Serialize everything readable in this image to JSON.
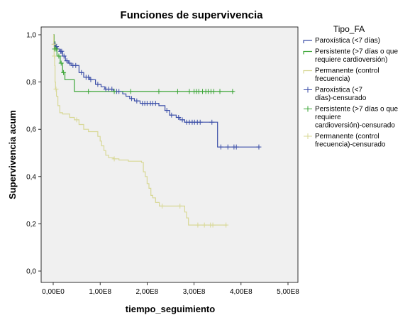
{
  "chart_data": {
    "type": "line",
    "title": "Funciones de supervivencia",
    "xlabel": "tiempo_seguimiento",
    "ylabel": "Supervivencia acum",
    "xlim": [
      0,
      500000000
    ],
    "ylim": [
      0,
      1.0
    ],
    "x_ticks": [
      {
        "value": 0,
        "label": "0,00E0"
      },
      {
        "value": 100000000,
        "label": "1,00E8"
      },
      {
        "value": 200000000,
        "label": "2,00E8"
      },
      {
        "value": 300000000,
        "label": "3,00E8"
      },
      {
        "value": 400000000,
        "label": "4,00E8"
      },
      {
        "value": 500000000,
        "label": "5,00E8"
      }
    ],
    "y_ticks": [
      {
        "value": 0,
        "label": "0,0"
      },
      {
        "value": 0.2,
        "label": "0,2"
      },
      {
        "value": 0.4,
        "label": "0,4"
      },
      {
        "value": 0.6,
        "label": "0,6"
      },
      {
        "value": 0.8,
        "label": "0,8"
      },
      {
        "value": 1.0,
        "label": "1,0"
      }
    ],
    "grid": false,
    "legend_position": "right",
    "legend_title": "Tipo_FA",
    "legend": [
      {
        "label": "Paroxística (<7 días)",
        "kind": "line",
        "series": 0
      },
      {
        "label": "Persistente (>7 días o que requiere cardioversión)",
        "kind": "line",
        "series": 1
      },
      {
        "label": "Permanente (control frecuencia)",
        "kind": "line",
        "series": 2
      },
      {
        "label": "Paroxística (<7 días)-censurado",
        "kind": "censor",
        "series": 0
      },
      {
        "label": "Persistente (>7 días o que requiere cardioversión)-censurado",
        "kind": "censor",
        "series": 1
      },
      {
        "label": "Permanente (control frecuencia)-censurado",
        "kind": "censor",
        "series": 2
      }
    ],
    "series": [
      {
        "color": "#3b4ea8",
        "steps": [
          [
            0,
            1.0
          ],
          [
            1500000,
            0.96
          ],
          [
            5000000,
            0.95
          ],
          [
            9000000,
            0.94
          ],
          [
            13000000,
            0.93
          ],
          [
            20000000,
            0.91
          ],
          [
            26000000,
            0.89
          ],
          [
            32000000,
            0.88
          ],
          [
            38000000,
            0.87
          ],
          [
            55000000,
            0.84
          ],
          [
            65000000,
            0.82
          ],
          [
            78000000,
            0.81
          ],
          [
            90000000,
            0.79
          ],
          [
            102000000,
            0.78
          ],
          [
            110000000,
            0.77
          ],
          [
            128000000,
            0.76
          ],
          [
            148000000,
            0.75
          ],
          [
            155000000,
            0.74
          ],
          [
            163000000,
            0.73
          ],
          [
            173000000,
            0.72
          ],
          [
            185000000,
            0.71
          ],
          [
            225000000,
            0.7
          ],
          [
            238000000,
            0.68
          ],
          [
            248000000,
            0.66
          ],
          [
            262000000,
            0.65
          ],
          [
            270000000,
            0.64
          ],
          [
            280000000,
            0.63
          ],
          [
            350000000,
            0.63
          ],
          [
            350000000,
            0.525
          ],
          [
            440000000,
            0.525
          ]
        ],
        "censored": [
          [
            3000000,
            0.96
          ],
          [
            7000000,
            0.95
          ],
          [
            16000000,
            0.93
          ],
          [
            18000000,
            0.93
          ],
          [
            23000000,
            0.91
          ],
          [
            29000000,
            0.89
          ],
          [
            35000000,
            0.88
          ],
          [
            42000000,
            0.87
          ],
          [
            48000000,
            0.87
          ],
          [
            60000000,
            0.84
          ],
          [
            70000000,
            0.82
          ],
          [
            75000000,
            0.82
          ],
          [
            80000000,
            0.81
          ],
          [
            95000000,
            0.79
          ],
          [
            112000000,
            0.77
          ],
          [
            118000000,
            0.77
          ],
          [
            125000000,
            0.77
          ],
          [
            135000000,
            0.76
          ],
          [
            140000000,
            0.76
          ],
          [
            167000000,
            0.73
          ],
          [
            178000000,
            0.72
          ],
          [
            190000000,
            0.71
          ],
          [
            195000000,
            0.71
          ],
          [
            200000000,
            0.71
          ],
          [
            207000000,
            0.71
          ],
          [
            212000000,
            0.71
          ],
          [
            218000000,
            0.71
          ],
          [
            242000000,
            0.68
          ],
          [
            252000000,
            0.66
          ],
          [
            267000000,
            0.65
          ],
          [
            275000000,
            0.64
          ],
          [
            284000000,
            0.63
          ],
          [
            290000000,
            0.63
          ],
          [
            296000000,
            0.63
          ],
          [
            301000000,
            0.63
          ],
          [
            307000000,
            0.63
          ],
          [
            313000000,
            0.63
          ],
          [
            338000000,
            0.63
          ],
          [
            357000000,
            0.525
          ],
          [
            372000000,
            0.525
          ],
          [
            385000000,
            0.525
          ],
          [
            390000000,
            0.525
          ],
          [
            438000000,
            0.525
          ]
        ]
      },
      {
        "color": "#3aa535",
        "steps": [
          [
            0,
            1.0
          ],
          [
            2000000,
            0.97
          ],
          [
            4000000,
            0.94
          ],
          [
            8000000,
            0.91
          ],
          [
            15000000,
            0.88
          ],
          [
            20000000,
            0.84
          ],
          [
            25000000,
            0.81
          ],
          [
            45000000,
            0.76
          ],
          [
            385000000,
            0.76
          ]
        ],
        "censored": [
          [
            3000000,
            0.94
          ],
          [
            6000000,
            0.94
          ],
          [
            12000000,
            0.91
          ],
          [
            17000000,
            0.88
          ],
          [
            22000000,
            0.84
          ],
          [
            75000000,
            0.76
          ],
          [
            130000000,
            0.76
          ],
          [
            165000000,
            0.76
          ],
          [
            225000000,
            0.76
          ],
          [
            265000000,
            0.76
          ],
          [
            290000000,
            0.76
          ],
          [
            300000000,
            0.76
          ],
          [
            305000000,
            0.76
          ],
          [
            310000000,
            0.76
          ],
          [
            318000000,
            0.76
          ],
          [
            325000000,
            0.76
          ],
          [
            330000000,
            0.76
          ],
          [
            336000000,
            0.76
          ],
          [
            342000000,
            0.76
          ],
          [
            355000000,
            0.76
          ],
          [
            382000000,
            0.76
          ]
        ]
      },
      {
        "color": "#d8d896",
        "steps": [
          [
            0,
            1.0
          ],
          [
            1000000,
            0.96
          ],
          [
            2000000,
            0.91
          ],
          [
            3000000,
            0.87
          ],
          [
            4000000,
            0.8
          ],
          [
            5000000,
            0.77
          ],
          [
            7000000,
            0.74
          ],
          [
            10000000,
            0.7
          ],
          [
            14000000,
            0.67
          ],
          [
            20000000,
            0.665
          ],
          [
            35000000,
            0.65
          ],
          [
            45000000,
            0.64
          ],
          [
            55000000,
            0.62
          ],
          [
            65000000,
            0.6
          ],
          [
            75000000,
            0.59
          ],
          [
            95000000,
            0.57
          ],
          [
            100000000,
            0.55
          ],
          [
            103000000,
            0.53
          ],
          [
            108000000,
            0.51
          ],
          [
            112000000,
            0.49
          ],
          [
            118000000,
            0.48
          ],
          [
            128000000,
            0.475
          ],
          [
            140000000,
            0.47
          ],
          [
            160000000,
            0.465
          ],
          [
            188000000,
            0.46
          ],
          [
            192000000,
            0.42
          ],
          [
            196000000,
            0.4
          ],
          [
            200000000,
            0.37
          ],
          [
            204000000,
            0.35
          ],
          [
            208000000,
            0.32
          ],
          [
            212000000,
            0.31
          ],
          [
            218000000,
            0.29
          ],
          [
            226000000,
            0.275
          ],
          [
            276000000,
            0.275
          ],
          [
            280000000,
            0.25
          ],
          [
            284000000,
            0.225
          ],
          [
            288000000,
            0.195
          ],
          [
            370000000,
            0.195
          ]
        ],
        "censored": [
          [
            1500000,
            0.96
          ],
          [
            2500000,
            0.91
          ],
          [
            6000000,
            0.77
          ],
          [
            50000000,
            0.64
          ],
          [
            130000000,
            0.475
          ],
          [
            232000000,
            0.275
          ],
          [
            270000000,
            0.275
          ],
          [
            308000000,
            0.195
          ],
          [
            322000000,
            0.195
          ],
          [
            335000000,
            0.195
          ],
          [
            340000000,
            0.195
          ],
          [
            368000000,
            0.195
          ]
        ]
      }
    ]
  }
}
